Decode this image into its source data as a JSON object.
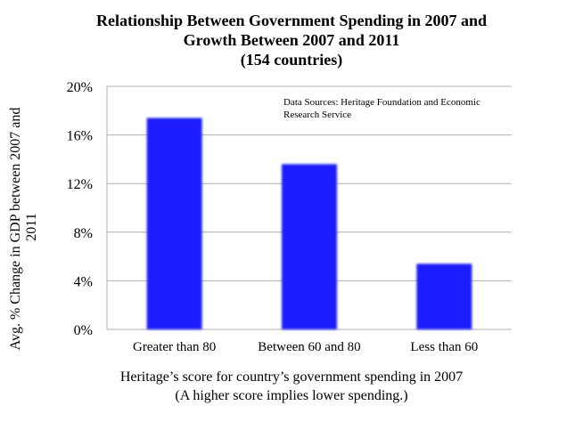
{
  "chart_data": {
    "type": "bar",
    "title_lines": [
      "Relationship Between Government Spending in 2007 and",
      "Growth Between 2007 and 2011",
      "(154 countries)"
    ],
    "categories": [
      "Greater than 80",
      "Between 60 and 80",
      "Less than 60"
    ],
    "values": [
      17.4,
      13.6,
      5.4
    ],
    "ylim": [
      0,
      20
    ],
    "yticks": [
      "0%",
      "4%",
      "8%",
      "12%",
      "16%",
      "20%"
    ],
    "ytick_values": [
      0,
      4,
      8,
      12,
      16,
      20
    ],
    "ylabel_lines": [
      "Avg. % Change in GDP between 2007 and",
      "2011"
    ],
    "xlabel_lines": [
      "Heritage’s score for country’s government spending in 2007",
      "(A higher score implies lower spending.)"
    ],
    "annotation_lines": [
      "Data Sources: Heritage Foundation and Economic",
      "Research Service"
    ],
    "grid": true,
    "bar_color": "#1a1aff",
    "grid_color": "#b0b0b0"
  }
}
